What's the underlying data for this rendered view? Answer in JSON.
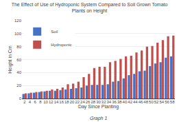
{
  "chart_data": {
    "type": "bar",
    "title": "The Effect of Use of Hydroponic System Compared to Soil Grown Tomato\nPlants on Height",
    "x_label": "Day Since Planting",
    "y_label": "Height in Cm",
    "caption": "Graph 1",
    "categories": [
      2,
      4,
      6,
      8,
      10,
      12,
      14,
      16,
      18,
      20,
      22,
      24,
      26,
      28,
      30,
      32,
      34,
      36,
      38,
      40,
      42,
      44,
      46,
      48,
      50,
      52,
      54,
      56,
      58
    ],
    "series": [
      {
        "name": "Soil",
        "color": "#4472C4",
        "values": [
          7,
          8,
          9,
          10,
          11,
          12,
          12,
          13,
          14,
          15,
          16,
          17,
          20,
          21,
          21,
          21,
          22,
          26,
          27,
          31,
          36,
          38,
          42,
          43,
          50,
          54,
          56,
          63,
          65
        ]
      },
      {
        "name": "Hydroponic",
        "color": "#C0504D",
        "values": [
          8,
          9,
          10,
          11,
          12,
          14,
          15,
          17,
          22,
          23,
          26,
          33,
          38,
          47,
          49,
          49,
          56,
          58,
          61,
          65,
          66,
          71,
          74,
          80,
          81,
          86,
          90,
          96,
          97
        ]
      }
    ],
    "ylim": [
      0,
      120
    ],
    "yticks": [
      0,
      20,
      40,
      60,
      80,
      100,
      120
    ],
    "grid": true,
    "legend": "upper left"
  }
}
